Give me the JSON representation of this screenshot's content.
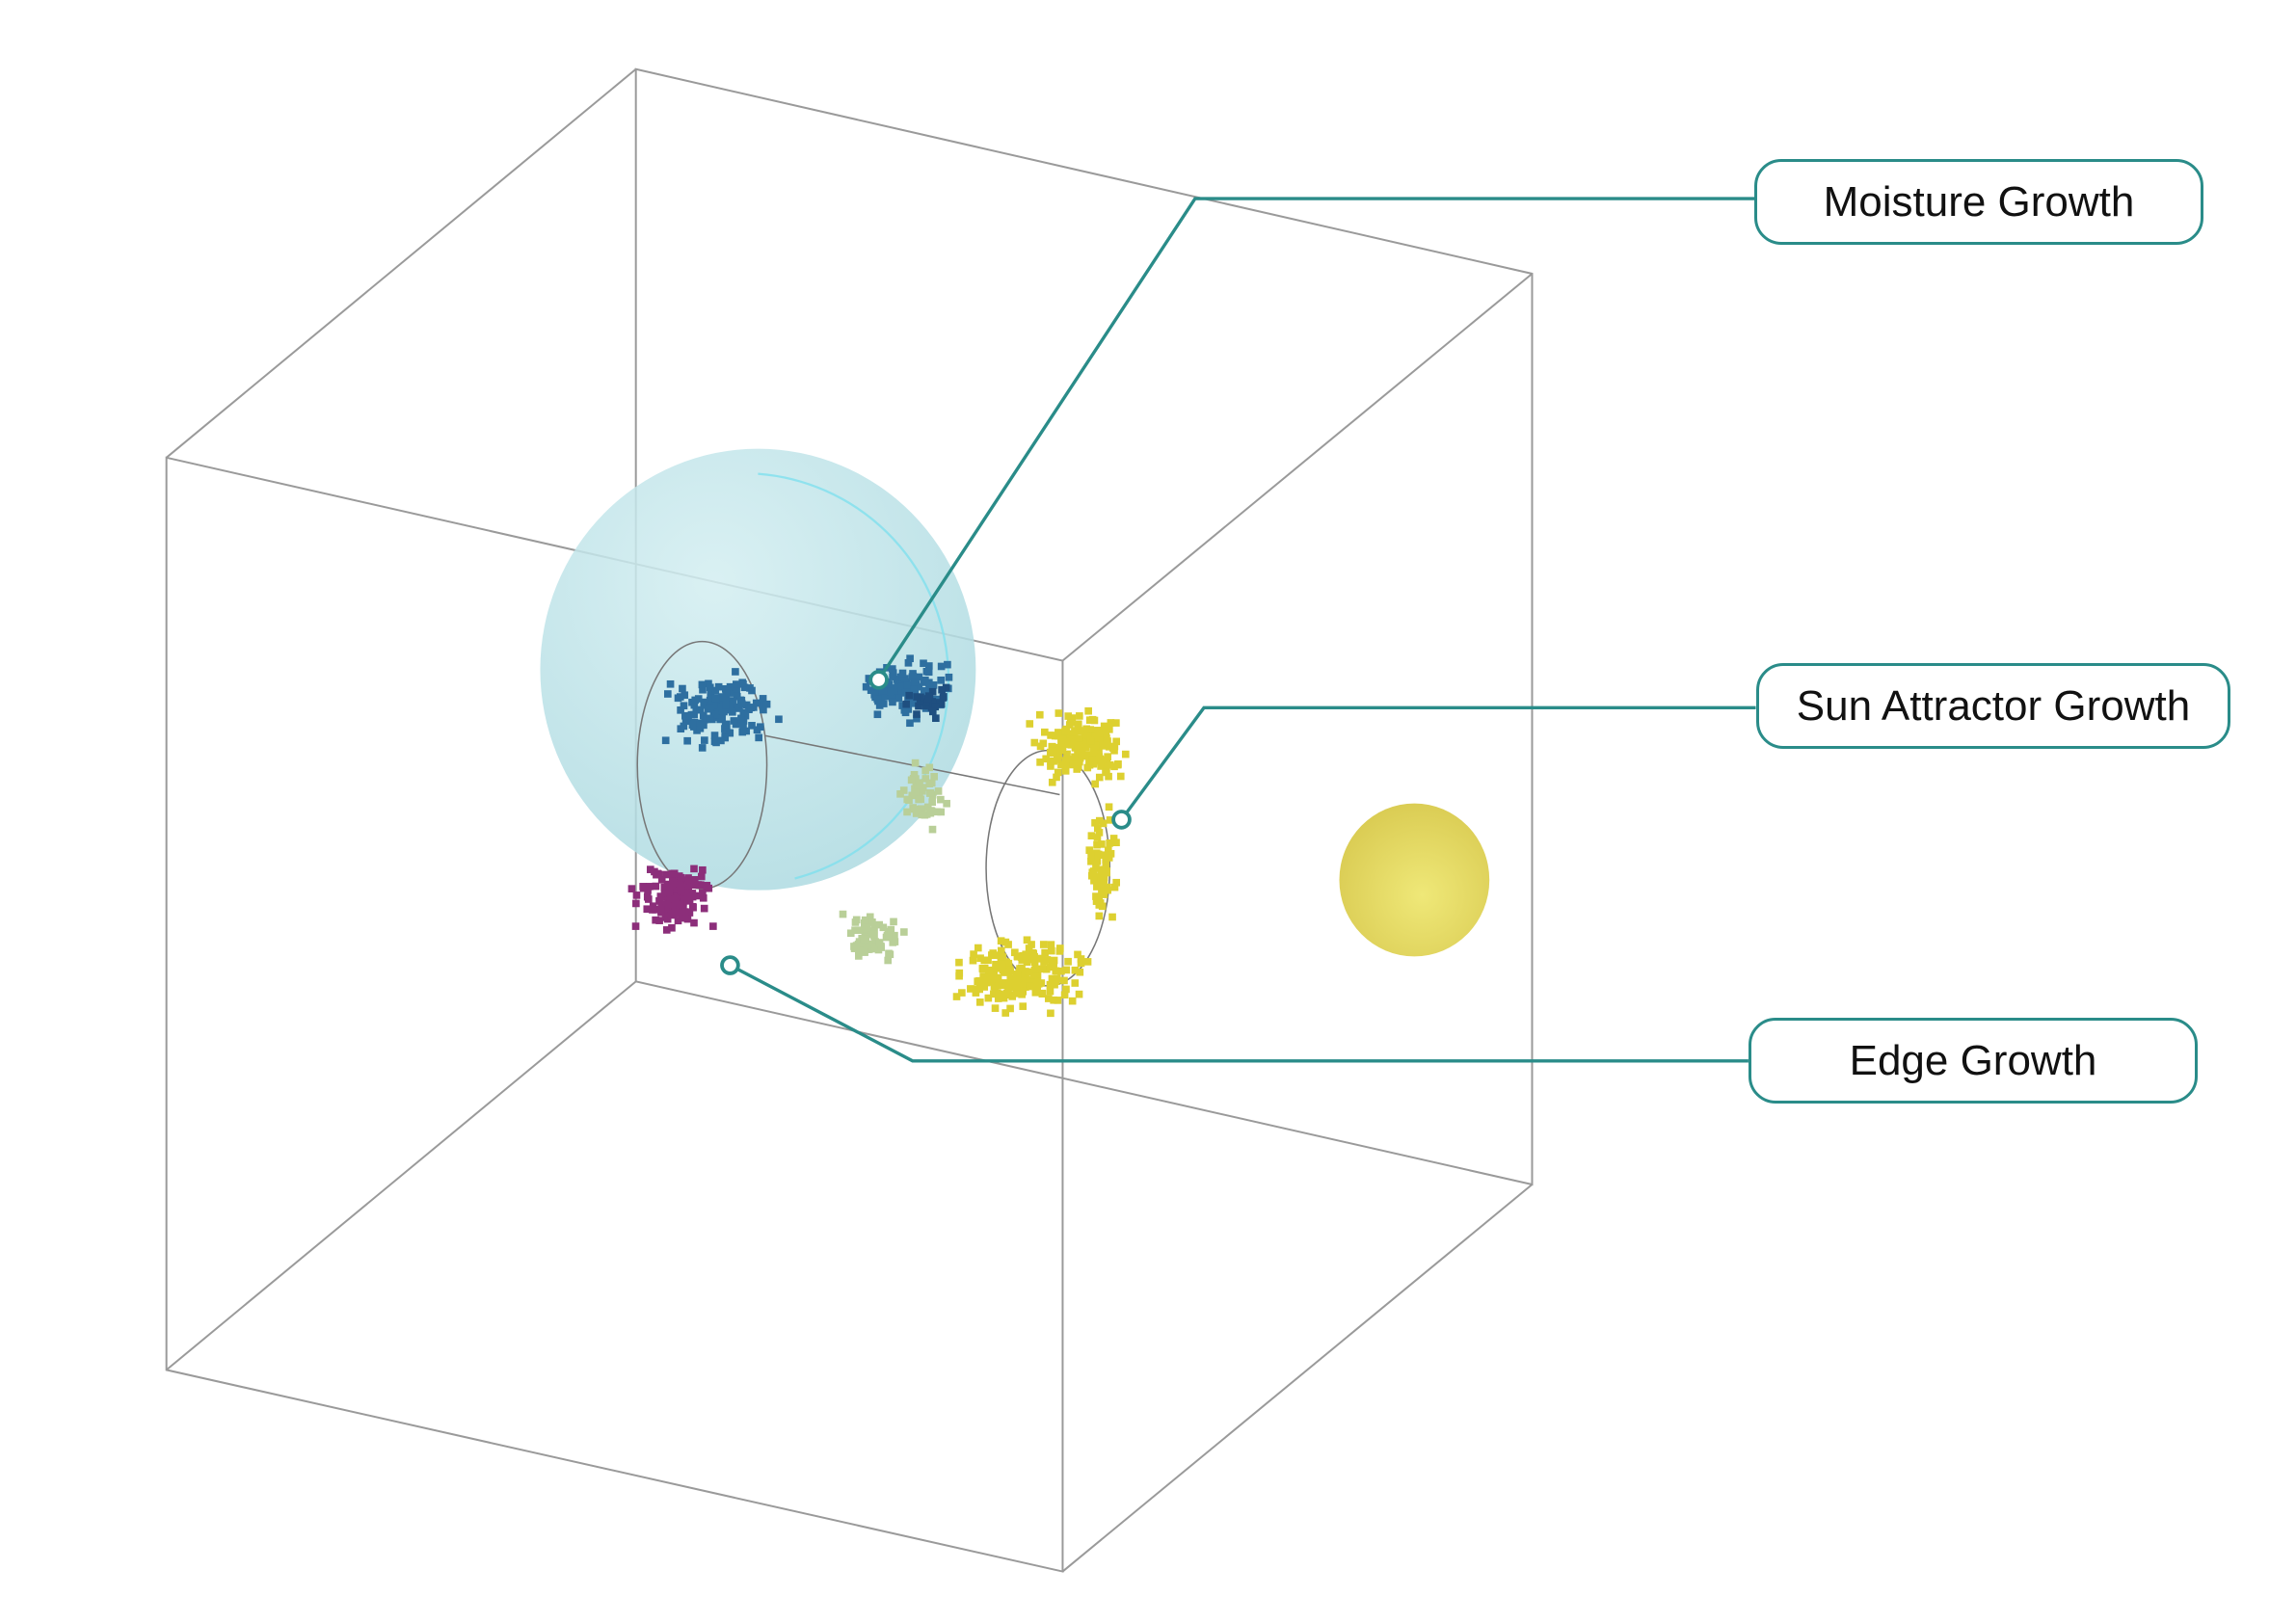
{
  "labels": {
    "moisture": "Moisture Growth",
    "sun": "Sun Attractor Growth",
    "edge": "Edge Growth"
  },
  "colors": {
    "accent": "#2a8c89",
    "moisture_sphere": "#b4e0e6",
    "sun_sphere": "#e6d85a",
    "blue_points": "#2e6fa0",
    "yellow_points": "#ddd030",
    "green_points": "#b9cf98",
    "magenta_points": "#8c2e7a",
    "cube_edges": "#9a9a9a"
  }
}
